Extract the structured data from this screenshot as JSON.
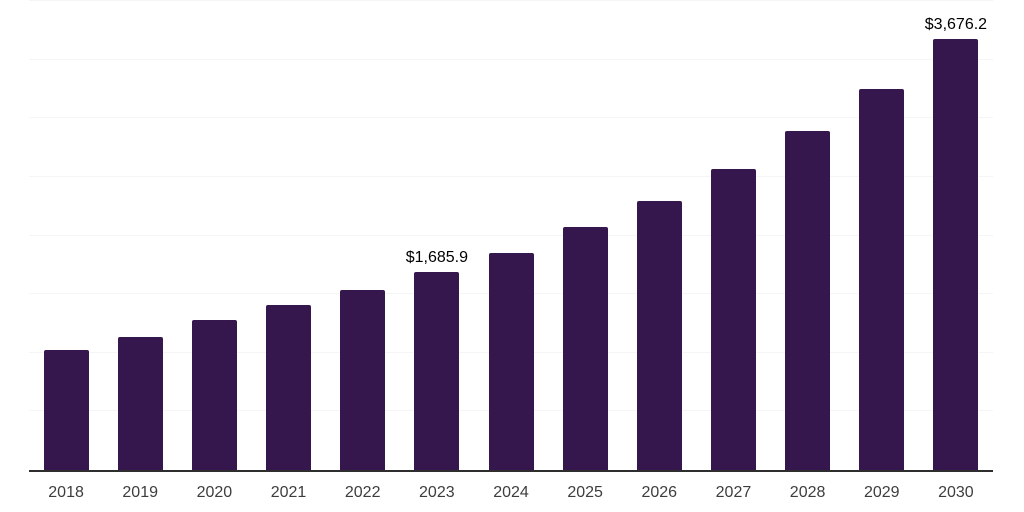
{
  "chart": {
    "background_color": "#ffffff",
    "bar_color": "#36174D",
    "gridline_color": "#f5f5f5",
    "axis_line_color": "#2e2e2e",
    "year_label_color": "#3d3d3d",
    "value_label_color": "#000000"
  },
  "chart_data": {
    "type": "bar",
    "title": "",
    "xlabel": "",
    "ylabel": "",
    "categories": [
      "2018",
      "2019",
      "2020",
      "2021",
      "2022",
      "2023",
      "2024",
      "2025",
      "2026",
      "2027",
      "2028",
      "2029",
      "2030"
    ],
    "values": [
      1020,
      1136,
      1276,
      1404,
      1540,
      1685.9,
      1855,
      2071,
      2299,
      2571,
      2889,
      3250,
      3676.2
    ],
    "data_labels": [
      "",
      "",
      "",
      "",
      "",
      "$1,685.9",
      "",
      "",
      "",
      "",
      "",
      "",
      "$3,676.2"
    ],
    "ylim": [
      0,
      4000
    ],
    "gridline_interval": 500,
    "y_tick_labels_visible": false,
    "grid": "horizontal",
    "legend_position": "none"
  }
}
